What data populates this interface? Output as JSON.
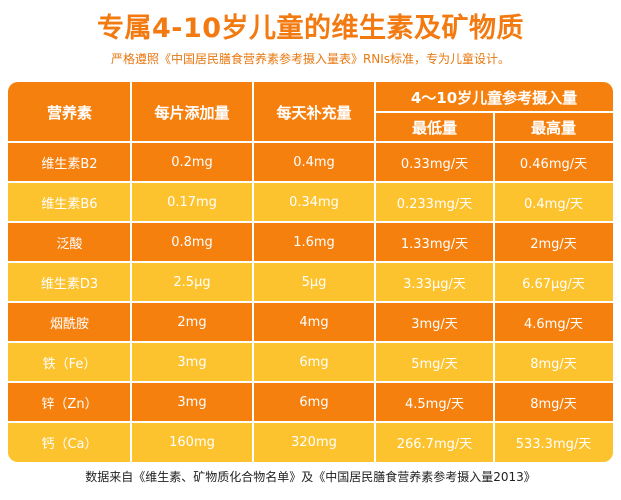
{
  "title": "专属4-10岁儿童的维生素及矿物质",
  "subtitle": "严格遵照《中国居民膳食营养素参考摄入量表》RNIs标准，专为儿童设计。",
  "table": {
    "headers": {
      "nutrient": "营养素",
      "per_tablet": "每片添加量",
      "daily": "每天补充量",
      "reference": "4～10岁儿童参考摄入量",
      "min": "最低量",
      "max": "最高量"
    },
    "rows": [
      {
        "nutrient": "维生素B2",
        "per_tablet": "0.2mg",
        "daily": "0.4mg",
        "min": "0.33mg/天",
        "max": "0.46mg/天"
      },
      {
        "nutrient": "维生素B6",
        "per_tablet": "0.17mg",
        "daily": "0.34mg",
        "min": "0.233mg/天",
        "max": "0.4mg/天"
      },
      {
        "nutrient": "泛酸",
        "per_tablet": "0.8mg",
        "daily": "1.6mg",
        "min": "1.33mg/天",
        "max": "2mg/天"
      },
      {
        "nutrient": "维生素D3",
        "per_tablet": "2.5μg",
        "daily": "5μg",
        "min": "3.33μg/天",
        "max": "6.67μg/天"
      },
      {
        "nutrient": "烟酰胺",
        "per_tablet": "2mg",
        "daily": "4mg",
        "min": "3mg/天",
        "max": "4.6mg/天"
      },
      {
        "nutrient": "铁（Fe）",
        "per_tablet": "3mg",
        "daily": "6mg",
        "min": "5mg/天",
        "max": "8mg/天"
      },
      {
        "nutrient": "锌（Zn）",
        "per_tablet": "3mg",
        "daily": "6mg",
        "min": "4.5mg/天",
        "max": "8mg/天"
      },
      {
        "nutrient": "钙（Ca）",
        "per_tablet": "160mg",
        "daily": "320mg",
        "min": "266.7mg/天",
        "max": "533.3mg/天"
      }
    ]
  },
  "footer": "数据来自《维生素、矿物质化合物名单》及《中国居民膳食营养素参考摄入量2013》",
  "colors": {
    "title": "#f27a10",
    "header_bg": "#f6800e",
    "nutrient_col_orange": "#f6800e",
    "nutrient_col_yellow": "#fdc32e",
    "body_bg": "#fcd13b"
  }
}
